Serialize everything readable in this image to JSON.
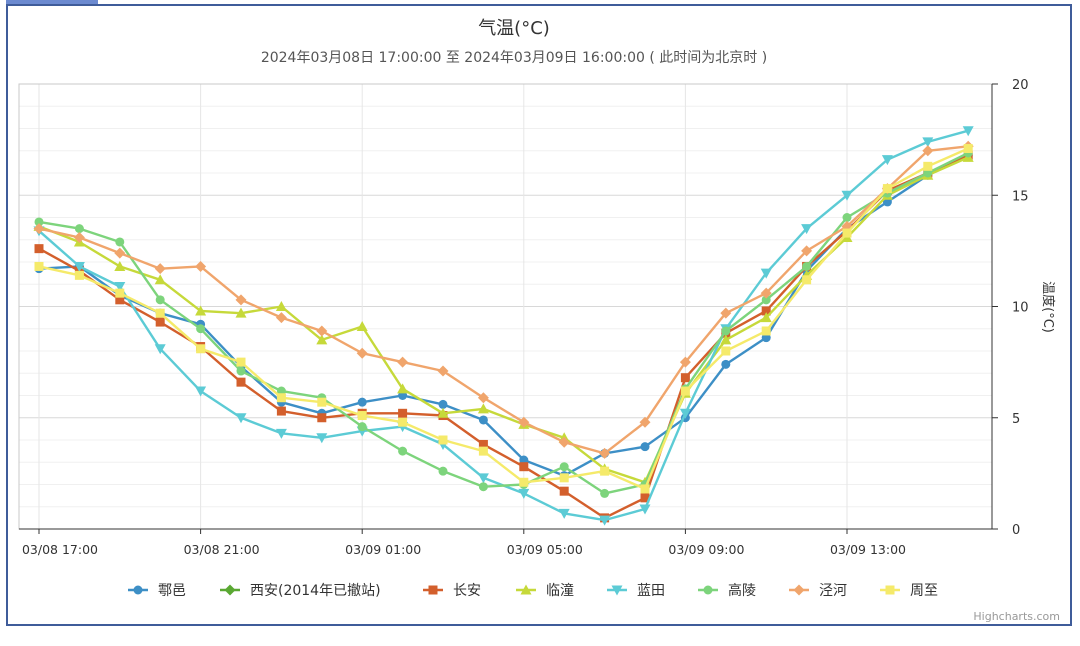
{
  "chart_data": {
    "type": "line",
    "title": "气温(°C)",
    "subtitle": "2024年03月08日 17:00:00 至 2024年03月09日 16:00:00 ( 此时间为北京时 )",
    "ylabel": "温度(°C)",
    "ylim": [
      0,
      20
    ],
    "yticks": [
      "0",
      "5",
      "10",
      "15",
      "20"
    ],
    "x_categories": [
      "03/08 17:00",
      "03/08 18:00",
      "03/08 19:00",
      "03/08 20:00",
      "03/08 21:00",
      "03/08 22:00",
      "03/08 23:00",
      "03/09 00:00",
      "03/09 01:00",
      "03/09 02:00",
      "03/09 03:00",
      "03/09 04:00",
      "03/09 05:00",
      "03/09 06:00",
      "03/09 07:00",
      "03/09 08:00",
      "03/09 09:00",
      "03/09 10:00",
      "03/09 11:00",
      "03/09 12:00",
      "03/09 13:00",
      "03/09 14:00",
      "03/09 15:00",
      "03/09 16:00"
    ],
    "xtick_labels": [
      "03/08 17:00",
      "03/08 21:00",
      "03/09 01:00",
      "03/09 05:00",
      "03/09 09:00",
      "03/09 13:00"
    ],
    "grid": true,
    "legend_position": "bottom",
    "credit": "Highcharts.com",
    "series": [
      {
        "name": "鄠邑",
        "color": "#3d8fc6",
        "marker": "circle",
        "values": [
          11.7,
          11.8,
          10.5,
          9.7,
          9.2,
          7.3,
          5.7,
          5.2,
          5.7,
          6.0,
          5.6,
          4.9,
          3.1,
          2.4,
          3.4,
          3.7,
          5.0,
          7.4,
          8.6,
          11.6,
          13.5,
          14.7,
          15.9,
          16.8
        ]
      },
      {
        "name": "西安(2014年已撤站)",
        "color": "#5aa832",
        "marker": "diamond",
        "values": [
          null,
          null,
          null,
          null,
          null,
          null,
          null,
          null,
          null,
          null,
          null,
          null,
          null,
          null,
          null,
          null,
          null,
          null,
          null,
          null,
          null,
          null,
          null,
          null
        ]
      },
      {
        "name": "长安",
        "color": "#d35f2c",
        "marker": "square",
        "values": [
          12.6,
          11.6,
          10.3,
          9.3,
          8.2,
          6.6,
          5.3,
          5.0,
          5.2,
          5.2,
          5.1,
          3.8,
          2.8,
          1.7,
          0.5,
          1.4,
          6.8,
          8.8,
          9.8,
          11.8,
          13.4,
          15.2,
          16.0,
          16.8
        ]
      },
      {
        "name": "临潼",
        "color": "#c6d93a",
        "marker": "triangle",
        "values": [
          13.6,
          12.9,
          11.8,
          11.2,
          9.8,
          9.7,
          10.0,
          8.5,
          9.1,
          6.3,
          5.2,
          5.4,
          4.7,
          4.1,
          2.7,
          2.1,
          6.1,
          8.5,
          9.5,
          11.4,
          13.1,
          15.0,
          15.9,
          16.7
        ]
      },
      {
        "name": "蓝田",
        "color": "#5ccbd5",
        "marker": "triangle-down",
        "values": [
          13.4,
          11.8,
          10.9,
          8.1,
          6.2,
          5.0,
          4.3,
          4.1,
          4.4,
          4.6,
          3.8,
          2.3,
          1.6,
          0.7,
          0.4,
          0.9,
          5.2,
          9.0,
          11.5,
          13.5,
          15.0,
          16.6,
          17.4,
          17.9
        ]
      },
      {
        "name": "高陵",
        "color": "#7dd47c",
        "marker": "circle",
        "values": [
          13.8,
          13.5,
          12.9,
          10.3,
          9.0,
          7.1,
          6.2,
          5.9,
          4.6,
          3.5,
          2.6,
          1.9,
          2.0,
          2.8,
          1.6,
          2.0,
          6.3,
          8.9,
          10.3,
          11.8,
          14.0,
          15.1,
          16.0,
          16.9
        ]
      },
      {
        "name": "泾河",
        "color": "#f0a56c",
        "marker": "diamond",
        "values": [
          13.5,
          13.1,
          12.4,
          11.7,
          11.8,
          10.3,
          9.5,
          8.9,
          7.9,
          7.5,
          7.1,
          5.9,
          4.8,
          3.9,
          3.4,
          4.8,
          7.5,
          9.7,
          10.6,
          12.5,
          13.6,
          15.3,
          17.0,
          17.2
        ]
      },
      {
        "name": "周至",
        "color": "#f5ea6a",
        "marker": "square",
        "values": [
          11.8,
          11.4,
          10.6,
          9.7,
          8.1,
          7.5,
          5.9,
          5.7,
          5.1,
          4.8,
          4.0,
          3.5,
          2.1,
          2.3,
          2.6,
          1.8,
          6.2,
          8.0,
          8.9,
          11.2,
          13.3,
          15.3,
          16.3,
          17.1
        ]
      }
    ]
  }
}
